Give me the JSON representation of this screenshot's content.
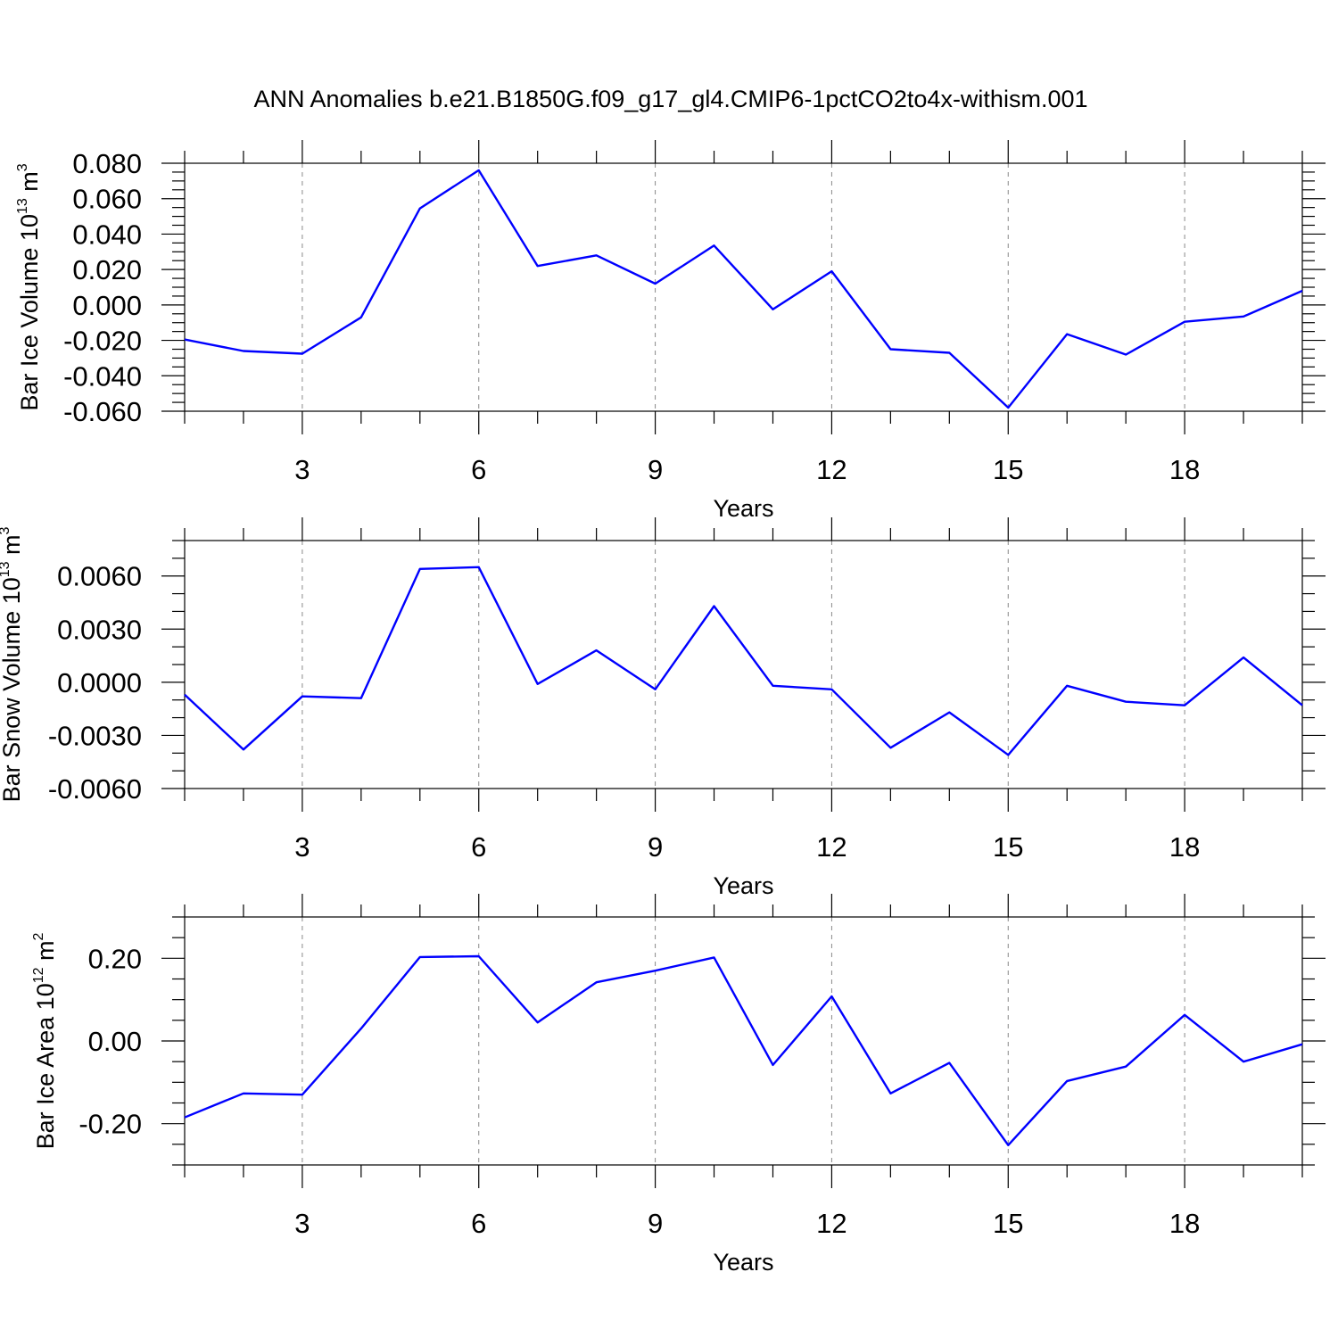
{
  "figure_title": "ANN Anomalies b.e21.B1850G.f09_g17_gl4.CMIP6-1pctCO2to4x-withism.001",
  "colors": {
    "line": "#0000ff",
    "axis": "#000000",
    "grid": "#888888"
  },
  "chart_data": [
    {
      "type": "line",
      "title": "ANN Anomalies b.e21.B1850G.f09_g17_gl4.CMIP6-1pctCO2to4x-withism.001",
      "xlabel": "Years",
      "ylabel": "Bar Ice Volume 10",
      "ylabel_exp": "13",
      "ylabel_unit": "m",
      "ylabel_unit_exp": "3",
      "xlim": [
        1,
        20
      ],
      "ylim": [
        -0.06,
        0.08
      ],
      "x_ticks": [
        3,
        6,
        9,
        12,
        15,
        18
      ],
      "x_tick_labels": [
        "3",
        "6",
        "9",
        "12",
        "15",
        "18"
      ],
      "y_ticks": [
        -0.06,
        -0.04,
        -0.02,
        0.0,
        0.02,
        0.04,
        0.06,
        0.08
      ],
      "y_tick_labels": [
        "-0.060",
        "-0.040",
        "-0.020",
        "0.000",
        "0.020",
        "0.040",
        "0.060",
        "0.080"
      ],
      "y_minor_step": 0.005,
      "grid": "dashed vertical at major x ticks",
      "series": [
        {
          "name": "Bar Ice Volume",
          "x": [
            1,
            2,
            3,
            4,
            5,
            6,
            7,
            8,
            9,
            10,
            11,
            12,
            13,
            14,
            15,
            16,
            17,
            18,
            19,
            20
          ],
          "values": [
            -0.0195,
            -0.026,
            -0.0275,
            -0.007,
            0.0545,
            0.076,
            0.022,
            0.028,
            0.012,
            0.0335,
            -0.0025,
            0.019,
            -0.025,
            -0.027,
            -0.058,
            -0.0165,
            -0.028,
            -0.0095,
            -0.0065,
            0.008
          ]
        }
      ]
    },
    {
      "type": "line",
      "xlabel": "Years",
      "ylabel": "Bar Snow Volume 10",
      "ylabel_exp": "13",
      "ylabel_unit": "m",
      "ylabel_unit_exp": "3",
      "xlim": [
        1,
        20
      ],
      "ylim": [
        -0.006,
        0.008
      ],
      "x_ticks": [
        3,
        6,
        9,
        12,
        15,
        18
      ],
      "x_tick_labels": [
        "3",
        "6",
        "9",
        "12",
        "15",
        "18"
      ],
      "y_ticks": [
        -0.006,
        -0.003,
        0.0,
        0.003,
        0.006
      ],
      "y_tick_labels": [
        "-0.0060",
        "-0.0030",
        "0.0000",
        "0.0030",
        "0.0060"
      ],
      "y_minor_step": 0.001,
      "grid": "dashed vertical at major x ticks",
      "series": [
        {
          "name": "Bar Snow Volume",
          "x": [
            1,
            2,
            3,
            4,
            5,
            6,
            7,
            8,
            9,
            10,
            11,
            12,
            13,
            14,
            15,
            16,
            17,
            18,
            19,
            20
          ],
          "values": [
            -0.0007,
            -0.0038,
            -0.0008,
            -0.0009,
            0.0064,
            0.0065,
            -0.0001,
            0.0018,
            -0.0004,
            0.0043,
            -0.0002,
            -0.0004,
            -0.0037,
            -0.0017,
            -0.0041,
            -0.0002,
            -0.0011,
            -0.0013,
            0.0014,
            -0.0013
          ]
        }
      ]
    },
    {
      "type": "line",
      "xlabel": "Years",
      "ylabel": "Bar Ice Area 10",
      "ylabel_exp": "12",
      "ylabel_unit": "m",
      "ylabel_unit_exp": "2",
      "xlim": [
        1,
        20
      ],
      "ylim": [
        -0.3,
        0.3
      ],
      "x_ticks": [
        3,
        6,
        9,
        12,
        15,
        18
      ],
      "x_tick_labels": [
        "3",
        "6",
        "9",
        "12",
        "15",
        "18"
      ],
      "y_ticks": [
        -0.2,
        0.0,
        0.2
      ],
      "y_tick_labels": [
        "-0.20",
        "0.00",
        "0.20"
      ],
      "y_minor_step": 0.05,
      "grid": "dashed vertical at major x ticks",
      "series": [
        {
          "name": "Bar Ice Area",
          "x": [
            1,
            2,
            3,
            4,
            5,
            6,
            7,
            8,
            9,
            10,
            11,
            12,
            13,
            14,
            15,
            16,
            17,
            18,
            19,
            20
          ],
          "values": [
            -0.185,
            -0.127,
            -0.13,
            0.03,
            0.203,
            0.205,
            0.045,
            0.142,
            0.17,
            0.202,
            -0.058,
            0.108,
            -0.127,
            -0.053,
            -0.252,
            -0.097,
            -0.062,
            0.063,
            -0.05,
            -0.008
          ]
        }
      ]
    }
  ]
}
